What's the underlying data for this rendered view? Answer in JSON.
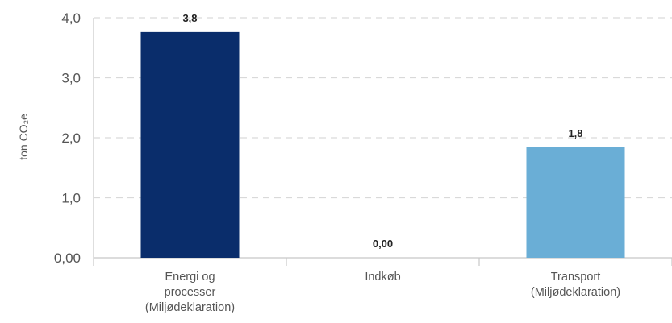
{
  "chart_data": {
    "type": "bar",
    "categories": [
      [
        "Energi og",
        "processer",
        "(Miljødeklaration)"
      ],
      [
        "Indkøb"
      ],
      [
        "Transport",
        "(Miljødeklaration)"
      ]
    ],
    "values": [
      3.76,
      0.0,
      1.84
    ],
    "data_labels": [
      "3,8",
      "0,00",
      "1,8"
    ],
    "bar_colors": [
      "#0a2d6b",
      "#0a2d6b",
      "#6aaed6"
    ],
    "ylabel": "ton CO₂e",
    "yticks": [
      {
        "value": 0,
        "label": "0,00"
      },
      {
        "value": 1,
        "label": "1,0"
      },
      {
        "value": 2,
        "label": "2,0"
      },
      {
        "value": 3,
        "label": "3,0"
      },
      {
        "value": 4,
        "label": "4,0"
      }
    ],
    "ylim": [
      0,
      4.2
    ],
    "grid": true,
    "grid_color": "#d9d9d9",
    "axis_color": "#c8c8c8"
  }
}
